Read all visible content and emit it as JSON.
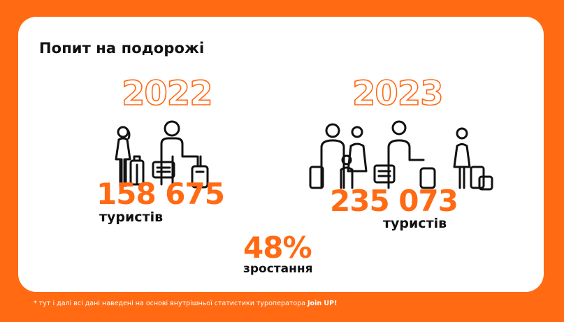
{
  "title": "Попит на подорожі",
  "years": [
    {
      "year": "2022",
      "count": "158 675",
      "unit": "туристів"
    },
    {
      "year": "2023",
      "count": "235 073",
      "unit": "туристів"
    }
  ],
  "growth": {
    "value": "48%",
    "label": "зростання"
  },
  "footnote": {
    "text": "* тут і далі всі дані наведені на основі внутрішньої статистики туроператора ",
    "brand": "Join UP!"
  },
  "icons": [
    "family-2022-icon",
    "family-2023-icon"
  ],
  "colors": {
    "accent": "#FF6A13",
    "card": "#FFFFFF",
    "text": "#111111"
  }
}
